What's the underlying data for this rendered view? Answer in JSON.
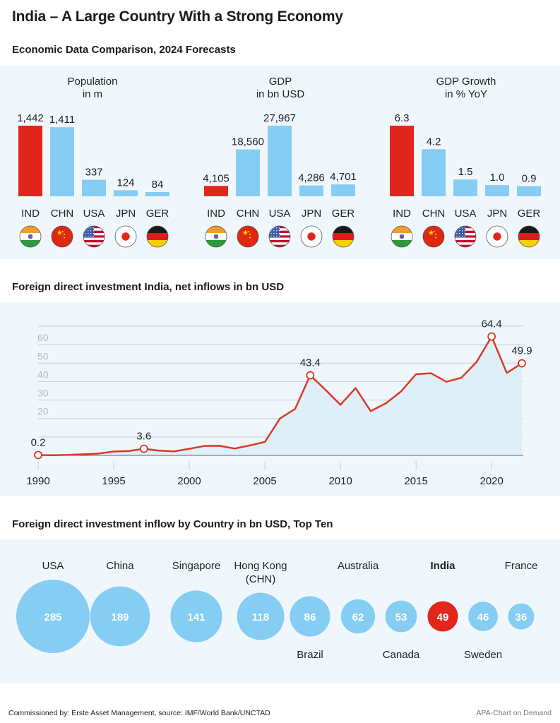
{
  "title": "India – A Large Country With a Strong Economy",
  "section1": {
    "title": "Economic Data Comparison, 2024 Forecasts"
  },
  "section2": {
    "title": "Foreign direct investment India, net inflows in bn USD"
  },
  "section3": {
    "title": "Foreign direct investment inflow by Country in bn USD, Top Ten"
  },
  "footer": {
    "source": "Commissioned by: Erste Asset Management, source: IMF/World Bank/UNCTAD",
    "credit": "APA-Chart on Demand"
  },
  "colors": {
    "highlight": "#e3261b",
    "bar": "#86cdf3",
    "panel_bg": "#eff7fd",
    "line": "#d93a22",
    "area": "#dcedfa",
    "grid": "#c8cfd6",
    "tick_label": "#b5b9bd"
  },
  "chart_data": [
    {
      "type": "bar",
      "title": "Population",
      "subtitle": "in m",
      "categories": [
        "IND",
        "CHN",
        "USA",
        "JPN",
        "GER"
      ],
      "values": [
        1442,
        1411,
        337,
        124,
        84
      ],
      "labels": [
        "1,442",
        "1,411",
        "337",
        "124",
        "84"
      ],
      "highlight": "IND",
      "flags": [
        "india-flag",
        "china-flag",
        "usa-flag",
        "japan-flag",
        "germany-flag"
      ]
    },
    {
      "type": "bar",
      "title": "GDP",
      "subtitle": "in bn USD",
      "categories": [
        "IND",
        "CHN",
        "USA",
        "JPN",
        "GER"
      ],
      "values": [
        4105,
        18560,
        27967,
        4286,
        4701
      ],
      "labels": [
        "4,105",
        "18,560",
        "27,967",
        "4,286",
        "4,701"
      ],
      "highlight": "IND",
      "flags": [
        "india-flag",
        "china-flag",
        "usa-flag",
        "japan-flag",
        "germany-flag"
      ]
    },
    {
      "type": "bar",
      "title": "GDP Growth",
      "subtitle": "in % YoY",
      "categories": [
        "IND",
        "CHN",
        "USA",
        "JPN",
        "GER"
      ],
      "values": [
        6.3,
        4.2,
        1.5,
        1.0,
        0.9
      ],
      "labels": [
        "6.3",
        "4.2",
        "1.5",
        "1.0",
        "0.9"
      ],
      "highlight": "IND",
      "flags": [
        "india-flag",
        "china-flag",
        "usa-flag",
        "japan-flag",
        "germany-flag"
      ]
    },
    {
      "type": "area",
      "title": "Foreign direct investment India, net inflows in bn USD",
      "x": [
        1990,
        1991,
        1992,
        1993,
        1994,
        1995,
        1996,
        1997,
        1998,
        1999,
        2000,
        2001,
        2002,
        2003,
        2004,
        2005,
        2006,
        2007,
        2008,
        2009,
        2010,
        2011,
        2012,
        2013,
        2014,
        2015,
        2016,
        2017,
        2018,
        2019,
        2020,
        2021,
        2022
      ],
      "values": [
        0.2,
        0.1,
        0.3,
        0.6,
        1.0,
        2.1,
        2.4,
        3.6,
        2.6,
        2.2,
        3.6,
        5.1,
        5.2,
        3.7,
        5.4,
        7.3,
        20.0,
        25.2,
        43.4,
        35.6,
        27.4,
        36.5,
        24.0,
        28.2,
        34.6,
        44.0,
        44.5,
        39.9,
        42.1,
        50.6,
        64.4,
        44.7,
        49.9
      ],
      "annotations": [
        {
          "x": 1990,
          "label": "0.2"
        },
        {
          "x": 1997,
          "label": "3.6"
        },
        {
          "x": 2008,
          "label": "43.4"
        },
        {
          "x": 2020,
          "label": "64.4"
        },
        {
          "x": 2022,
          "label": "49.9"
        }
      ],
      "x_ticks": [
        1990,
        1995,
        2000,
        2005,
        2010,
        2015,
        2020
      ],
      "y_ticks": [
        20,
        30,
        40,
        50,
        60
      ],
      "ylim": [
        0,
        70
      ],
      "grid": true,
      "xlabel": "",
      "ylabel": ""
    },
    {
      "type": "bubble",
      "title": "Foreign direct investment inflow by Country in bn USD, Top Ten",
      "categories": [
        "USA",
        "China",
        "Singapore",
        "Hong Kong (CHN)",
        "Brazil",
        "Australia",
        "Canada",
        "India",
        "Sweden",
        "France"
      ],
      "label_lines": [
        [
          "USA"
        ],
        [
          "China"
        ],
        [
          "Singapore"
        ],
        [
          "Hong Kong",
          "(CHN)"
        ],
        [
          "Brazil"
        ],
        [
          "Australia"
        ],
        [
          "Canada"
        ],
        [
          "India"
        ],
        [
          "Sweden"
        ],
        [
          "France"
        ]
      ],
      "label_positions": [
        "top",
        "top",
        "top",
        "top",
        "bottom",
        "top",
        "bottom",
        "top",
        "bottom",
        "top"
      ],
      "values": [
        285,
        189,
        141,
        118,
        86,
        62,
        53,
        49,
        46,
        36
      ],
      "highlight": "India"
    }
  ]
}
